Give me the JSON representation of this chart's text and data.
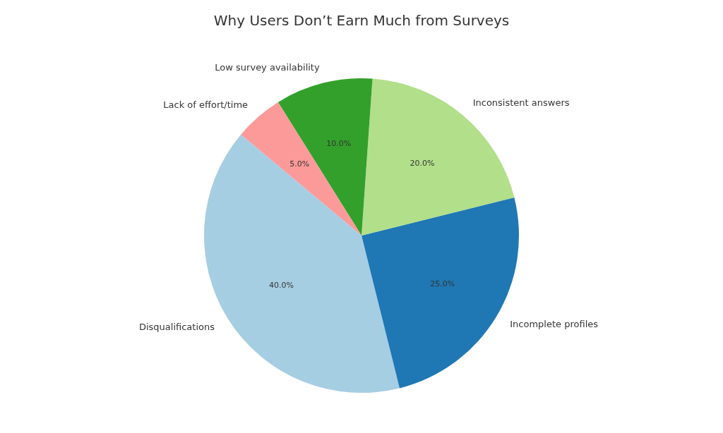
{
  "chart_data": {
    "type": "pie",
    "title": "Why Users Don’t Earn Much from Surveys",
    "categories": [
      "Disqualifications",
      "Incomplete profiles",
      "Inconsistent answers",
      "Low survey availability",
      "Lack of effort/time"
    ],
    "values": [
      40,
      25,
      20,
      10,
      5
    ],
    "colors": [
      "#a6cee3",
      "#1f78b4",
      "#b2df8a",
      "#33a02c",
      "#fb9a99"
    ],
    "value_labels": [
      "40.0%",
      "25.0%",
      "20.0%",
      "10.0%",
      "5.0%"
    ]
  }
}
